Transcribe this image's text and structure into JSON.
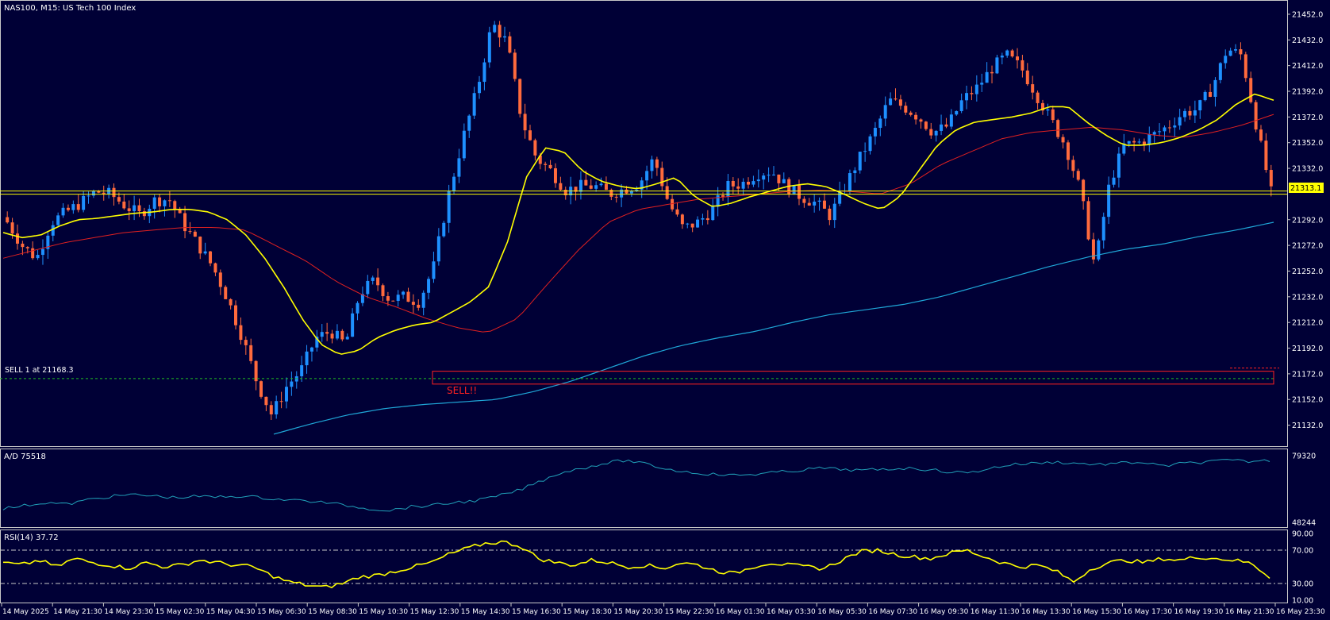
{
  "window": {
    "title": "NAS100, M15:  US Tech 100 Index"
  },
  "colors": {
    "background": "#000036",
    "frame": "#c8c8c8",
    "bull": "#1e90ff",
    "bear": "#ff6a3d",
    "ma_fast": "#ffff00",
    "ma_mid": "#e02020",
    "ma_slow": "#1fa7d8",
    "ad_line": "#20a0b8",
    "rsi_line": "#ffff00",
    "price_tag": "#ffff00",
    "sell": "#ff2020"
  },
  "main_chart": {
    "current_price": "21313.1",
    "y_ticks": [
      "21452.0",
      "21432.0",
      "21412.0",
      "21392.0",
      "21372.0",
      "21352.0",
      "21332.0",
      "21292.0",
      "21272.0",
      "21252.0",
      "21232.0",
      "21212.0",
      "21192.0",
      "21172.0",
      "21152.0",
      "21132.0"
    ],
    "order_label": "SELL 1 at 21168.3",
    "annotation": "SELL!!"
  },
  "ad_panel": {
    "label": "A/D 75518",
    "y_ticks": [
      "79320",
      "48244"
    ]
  },
  "rsi_panel": {
    "label": "RSI(14) 37.72",
    "y_ticks": [
      "90.00",
      "70.00",
      "30.00",
      "10.00"
    ]
  },
  "time_axis": [
    "14 May 2025",
    "14 May 21:30",
    "14 May 23:30",
    "15 May 02:30",
    "15 May 04:30",
    "15 May 06:30",
    "15 May 08:30",
    "15 May 10:30",
    "15 May 12:30",
    "15 May 14:30",
    "15 May 16:30",
    "15 May 18:30",
    "15 May 20:30",
    "15 May 22:30",
    "16 May 01:30",
    "16 May 03:30",
    "16 May 05:30",
    "16 May 07:30",
    "16 May 09:30",
    "16 May 11:30",
    "16 May 13:30",
    "16 May 15:30",
    "16 May 17:30",
    "16 May 19:30",
    "16 May 21:30",
    "16 May 23:30"
  ],
  "chart_data": {
    "type": "candlestick",
    "symbol": "NAS100",
    "timeframe": "M15",
    "price_range": [
      21120,
      21460
    ],
    "current_price": 21313.1,
    "order": {
      "side": "sell",
      "lots": 1,
      "price": 21168.3
    },
    "sell_zone": [
      21164,
      21174
    ],
    "close_path": [
      21290,
      21272,
      21262,
      21290,
      21298,
      21305,
      21314,
      21312,
      21303,
      21296,
      21307,
      21308,
      21288,
      21272,
      21255,
      21230,
      21200,
      21165,
      21140,
      21162,
      21175,
      21200,
      21205,
      21195,
      21235,
      21245,
      21230,
      21232,
      21228,
      21255,
      21310,
      21355,
      21395,
      21445,
      21430,
      21370,
      21340,
      21330,
      21315,
      21318,
      21318,
      21312,
      21316,
      21320,
      21340,
      21305,
      21285,
      21290,
      21300,
      21318,
      21320,
      21328,
      21330,
      21318,
      21310,
      21305,
      21295,
      21318,
      21340,
      21360,
      21385,
      21380,
      21372,
      21360,
      21365,
      21385,
      21395,
      21410,
      21420,
      21410,
      21390,
      21370,
      21350,
      21315,
      21255,
      21320,
      21350,
      21352,
      21358,
      21365,
      21375,
      21378,
      21395,
      21425,
      21420,
      21365,
      21313.1
    ],
    "ma_fast_path": [
      21282,
      21278,
      21280,
      21287,
      21292,
      21293,
      21295,
      21297,
      21298,
      21300,
      21300,
      21298,
      21292,
      21280,
      21262,
      21240,
      21215,
      21195,
      21187,
      21190,
      21200,
      21206,
      21210,
      21212,
      21220,
      21228,
      21240,
      21275,
      21325,
      21348,
      21345,
      21330,
      21322,
      21318,
      21316,
      21320,
      21325,
      21310,
      21302,
      21305,
      21310,
      21314,
      21318,
      21320,
      21318,
      21312,
      21305,
      21300,
      21310,
      21330,
      21350,
      21362,
      21368,
      21370,
      21372,
      21375,
      21380,
      21380,
      21368,
      21358,
      21350,
      21350,
      21352,
      21356,
      21362,
      21370,
      21382,
      21390,
      21385
    ],
    "ma_mid_path": [
      21262,
      21268,
      21274,
      21278,
      21282,
      21284,
      21286,
      21286,
      21284,
      21272,
      21260,
      21244,
      21232,
      21224,
      21215,
      21208,
      21204,
      21215,
      21242,
      21268,
      21290,
      21300,
      21304,
      21308,
      21310,
      21312,
      21314,
      21315,
      21314,
      21312,
      21320,
      21335,
      21345,
      21355,
      21360,
      21362,
      21364,
      21362,
      21358,
      21356,
      21360,
      21366,
      21374
    ],
    "ma_slow_path": [
      21125,
      21133,
      21140,
      21145,
      21148,
      21150,
      21152,
      21158,
      21166,
      21176,
      21186,
      21194,
      21200,
      21205,
      21212,
      21218,
      21222,
      21226,
      21232,
      21240,
      21248,
      21256,
      21263,
      21269,
      21273,
      21279,
      21284,
      21290
    ],
    "ad_range": [
      48244,
      79320
    ],
    "ad_last": 75518,
    "rsi_period": 14,
    "rsi_last": 37.72,
    "rsi_levels": [
      70,
      30
    ]
  }
}
